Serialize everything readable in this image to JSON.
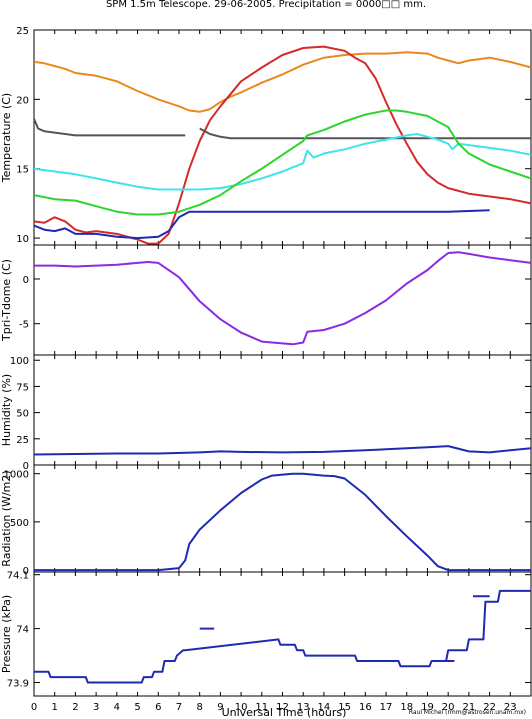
{
  "title": "SPM 1.5m Telescope. 29-06-2005. Precipitation = 0000□□ mm.",
  "credit": "Raul Michel (rmm@astrosen.unam.mx)",
  "xlabel": "Universal Time (hours)",
  "chart_data": [
    {
      "id": "temperature",
      "type": "scatter",
      "ylabel": "Temperature (C)",
      "xlim": [
        0,
        24
      ],
      "ylim": [
        9.5,
        25
      ],
      "yticks": [
        10,
        15,
        20,
        25
      ],
      "series": [
        {
          "color": "#e8891e",
          "x": [
            0,
            0.5,
            1,
            1.5,
            2,
            2.5,
            3,
            4,
            5,
            6,
            7,
            7.5,
            8,
            8.5,
            9,
            9.5,
            10,
            11,
            12,
            13,
            14,
            15,
            16,
            17,
            18,
            19,
            19.5,
            20,
            20.5,
            21,
            22,
            23,
            24
          ],
          "y": [
            22.7,
            22.6,
            22.4,
            22.2,
            21.9,
            21.8,
            21.7,
            21.3,
            20.6,
            20,
            19.5,
            19.2,
            19.1,
            19.3,
            19.8,
            20.2,
            20.5,
            21.2,
            21.8,
            22.5,
            23,
            23.2,
            23.3,
            23.3,
            23.4,
            23.3,
            23,
            22.8,
            22.6,
            22.8,
            23,
            22.7,
            22.3
          ]
        },
        {
          "color": "#d42a2a",
          "x": [
            0,
            0.5,
            1,
            1.5,
            2,
            2.5,
            3,
            4,
            5,
            5.5,
            6,
            6.5,
            7,
            7.5,
            8,
            8.5,
            9,
            10,
            11,
            12,
            13,
            14,
            15,
            15.5,
            16,
            16.5,
            17,
            17.5,
            18,
            18.5,
            19,
            19.5,
            20,
            20.5,
            21,
            22,
            23,
            24
          ],
          "y": [
            11.2,
            11.1,
            11.5,
            11.2,
            10.6,
            10.4,
            10.5,
            10.3,
            9.9,
            9.6,
            9.6,
            10.3,
            12.5,
            15,
            17,
            18.5,
            19.5,
            21.3,
            22.3,
            23.2,
            23.7,
            23.8,
            23.5,
            23,
            22.6,
            21.5,
            19.8,
            18.2,
            16.8,
            15.5,
            14.6,
            14,
            13.6,
            13.4,
            13.2,
            13,
            12.8,
            12.5
          ]
        },
        {
          "color": "#555555",
          "x": [
            0,
            0.2,
            0.5,
            1,
            1.5,
            2,
            2.5,
            3,
            4,
            5,
            6,
            7,
            7.3
          ],
          "y": [
            18.6,
            17.9,
            17.7,
            17.6,
            17.5,
            17.4,
            17.4,
            17.4,
            17.4,
            17.4,
            17.4,
            17.4,
            17.4
          ]
        },
        {
          "color": "#555555",
          "x": [
            8,
            8.5,
            9,
            9.5,
            10,
            11,
            12,
            13,
            14,
            15,
            16,
            17,
            18,
            19,
            20,
            21,
            22,
            23,
            24
          ],
          "y": [
            17.9,
            17.5,
            17.3,
            17.2,
            17.2,
            17.2,
            17.2,
            17.2,
            17.2,
            17.2,
            17.2,
            17.2,
            17.2,
            17.2,
            17.2,
            17.2,
            17.2,
            17.2,
            17.2
          ]
        },
        {
          "color": "#3ee3ee",
          "x": [
            0,
            1,
            2,
            3,
            4,
            5,
            6,
            7,
            8,
            9,
            10,
            11,
            12,
            13,
            13.2,
            13.5,
            14,
            15,
            16,
            17,
            18,
            18.5,
            19,
            19.5,
            20,
            20.2,
            20.5,
            21,
            22,
            23,
            24
          ],
          "y": [
            15,
            14.8,
            14.6,
            14.3,
            14,
            13.7,
            13.5,
            13.5,
            13.5,
            13.6,
            13.9,
            14.3,
            14.8,
            15.4,
            16.3,
            15.8,
            16.1,
            16.4,
            16.8,
            17.1,
            17.4,
            17.5,
            17.3,
            17.1,
            16.8,
            16.4,
            16.8,
            16.7,
            16.5,
            16.3,
            16
          ]
        },
        {
          "color": "#2ed42e",
          "x": [
            0,
            1,
            2,
            3,
            4,
            5,
            6,
            7,
            8,
            9,
            10,
            11,
            12,
            13,
            13.2,
            14,
            15,
            16,
            17,
            17.5,
            18,
            19,
            20,
            20.5,
            21,
            22,
            23,
            24
          ],
          "y": [
            13.1,
            12.8,
            12.7,
            12.3,
            11.9,
            11.7,
            11.7,
            11.9,
            12.4,
            13.1,
            14.1,
            15,
            16,
            17,
            17.4,
            17.8,
            18.4,
            18.9,
            19.2,
            19.2,
            19.1,
            18.8,
            18,
            16.8,
            16.1,
            15.3,
            14.8,
            14.3
          ]
        },
        {
          "color": "#1e2ab4",
          "x": [
            0,
            0.5,
            1,
            1.5,
            2,
            2.5,
            3,
            4,
            5,
            6,
            6.5,
            7,
            7.5,
            8,
            9,
            10,
            11,
            12,
            13,
            14,
            15,
            16,
            17,
            18,
            19,
            20,
            21,
            22
          ],
          "y": [
            10.9,
            10.6,
            10.5,
            10.7,
            10.3,
            10.3,
            10.3,
            10.1,
            10,
            10.1,
            10.5,
            11.5,
            11.9,
            11.9,
            11.9,
            11.9,
            11.9,
            11.9,
            11.9,
            11.9,
            11.9,
            11.9,
            11.9,
            11.9,
            11.9,
            11.9,
            11.95,
            12
          ]
        }
      ]
    },
    {
      "id": "tdome",
      "type": "line",
      "ylabel": "Tpri-Tdome (C)",
      "xlim": [
        0,
        24
      ],
      "ylim": [
        -8.5,
        3.8
      ],
      "yticks": [
        -5,
        0
      ],
      "series": [
        {
          "color": "#8a2be2",
          "x": [
            0,
            1,
            2,
            3,
            4,
            5,
            5.5,
            6,
            7,
            8,
            9,
            10,
            11,
            12,
            12.5,
            13,
            13.2,
            14,
            15,
            16,
            17,
            18,
            19,
            19.5,
            20,
            20.5,
            21,
            22,
            23,
            24
          ],
          "y": [
            1.5,
            1.5,
            1.4,
            1.5,
            1.6,
            1.8,
            1.9,
            1.8,
            0.2,
            -2.5,
            -4.5,
            -6,
            -7,
            -7.2,
            -7.3,
            -7.1,
            -5.9,
            -5.7,
            -5,
            -3.8,
            -2.4,
            -0.5,
            1,
            2,
            2.9,
            3,
            2.8,
            2.4,
            2.1,
            1.8
          ]
        }
      ]
    },
    {
      "id": "humidity",
      "type": "line",
      "ylabel": "Humidity (%)",
      "xlim": [
        0,
        24
      ],
      "ylim": [
        0,
        105
      ],
      "yticks": [
        0,
        25,
        50,
        75,
        100
      ],
      "series": [
        {
          "color": "#1e2ab4",
          "x": [
            0,
            2,
            4,
            6,
            8,
            9,
            10,
            12,
            14,
            16,
            18,
            19,
            20,
            21,
            22,
            23,
            24
          ],
          "y": [
            10,
            10.5,
            11,
            11,
            12,
            13,
            12.5,
            12,
            12.5,
            14,
            16,
            17,
            18,
            13,
            12,
            14,
            16
          ]
        }
      ]
    },
    {
      "id": "radiation",
      "type": "line",
      "ylabel": "Radiation (W/m2)",
      "xlim": [
        0,
        24
      ],
      "ylim": [
        -20,
        1090
      ],
      "yticks": [
        0,
        500,
        1000
      ],
      "series": [
        {
          "color": "#1e2ab4",
          "x": [
            0,
            2,
            4,
            6,
            7,
            7.3,
            7.5,
            8,
            9,
            10,
            11,
            11.5,
            12,
            12.5,
            13,
            14,
            14.5,
            15,
            16,
            17,
            18,
            19,
            19.5,
            20,
            22,
            24
          ],
          "y": [
            0,
            0,
            0,
            0,
            20,
            100,
            270,
            420,
            620,
            800,
            940,
            980,
            990,
            1000,
            1000,
            980,
            975,
            950,
            780,
            560,
            350,
            150,
            40,
            0,
            0,
            0
          ]
        }
      ]
    },
    {
      "id": "pressure",
      "type": "scatter",
      "ylabel": "Pressure (kPa)",
      "xlim": [
        0,
        24
      ],
      "ylim": [
        73.875,
        74.105
      ],
      "yticks": [
        73.9,
        74,
        74.1
      ],
      "series": [
        {
          "color": "#1e2ab4",
          "x": [
            0,
            0.7,
            0.8,
            2.5,
            2.6,
            5.2,
            5.3,
            5.7,
            5.8,
            6.2,
            6.3,
            6.8,
            6.9,
            7.2,
            7.3,
            11.8,
            11.9,
            12.6,
            12.7,
            13,
            13.1,
            15.5,
            15.6,
            17.6,
            17.7,
            19.1,
            19.2,
            19.9,
            20,
            20.9,
            21,
            21.7,
            21.8,
            22.4,
            22.5,
            24
          ],
          "y": [
            73.92,
            73.92,
            73.91,
            73.91,
            73.9,
            73.9,
            73.91,
            73.91,
            73.92,
            73.92,
            73.94,
            73.94,
            73.95,
            73.96,
            73.96,
            73.98,
            73.97,
            73.97,
            73.96,
            73.96,
            73.95,
            73.95,
            73.94,
            73.94,
            73.93,
            73.93,
            73.94,
            73.94,
            73.96,
            73.96,
            73.98,
            73.98,
            74.05,
            74.05,
            74.07,
            74.07
          ]
        },
        {
          "color": "#1e2ab4",
          "x": [
            8,
            8.7
          ],
          "y": [
            74,
            74
          ]
        },
        {
          "color": "#1e2ab4",
          "x": [
            19.5,
            20.3
          ],
          "y": [
            73.94,
            73.94
          ]
        },
        {
          "color": "#1e2ab4",
          "x": [
            21.2,
            22
          ],
          "y": [
            74.06,
            74.06
          ]
        }
      ]
    }
  ]
}
